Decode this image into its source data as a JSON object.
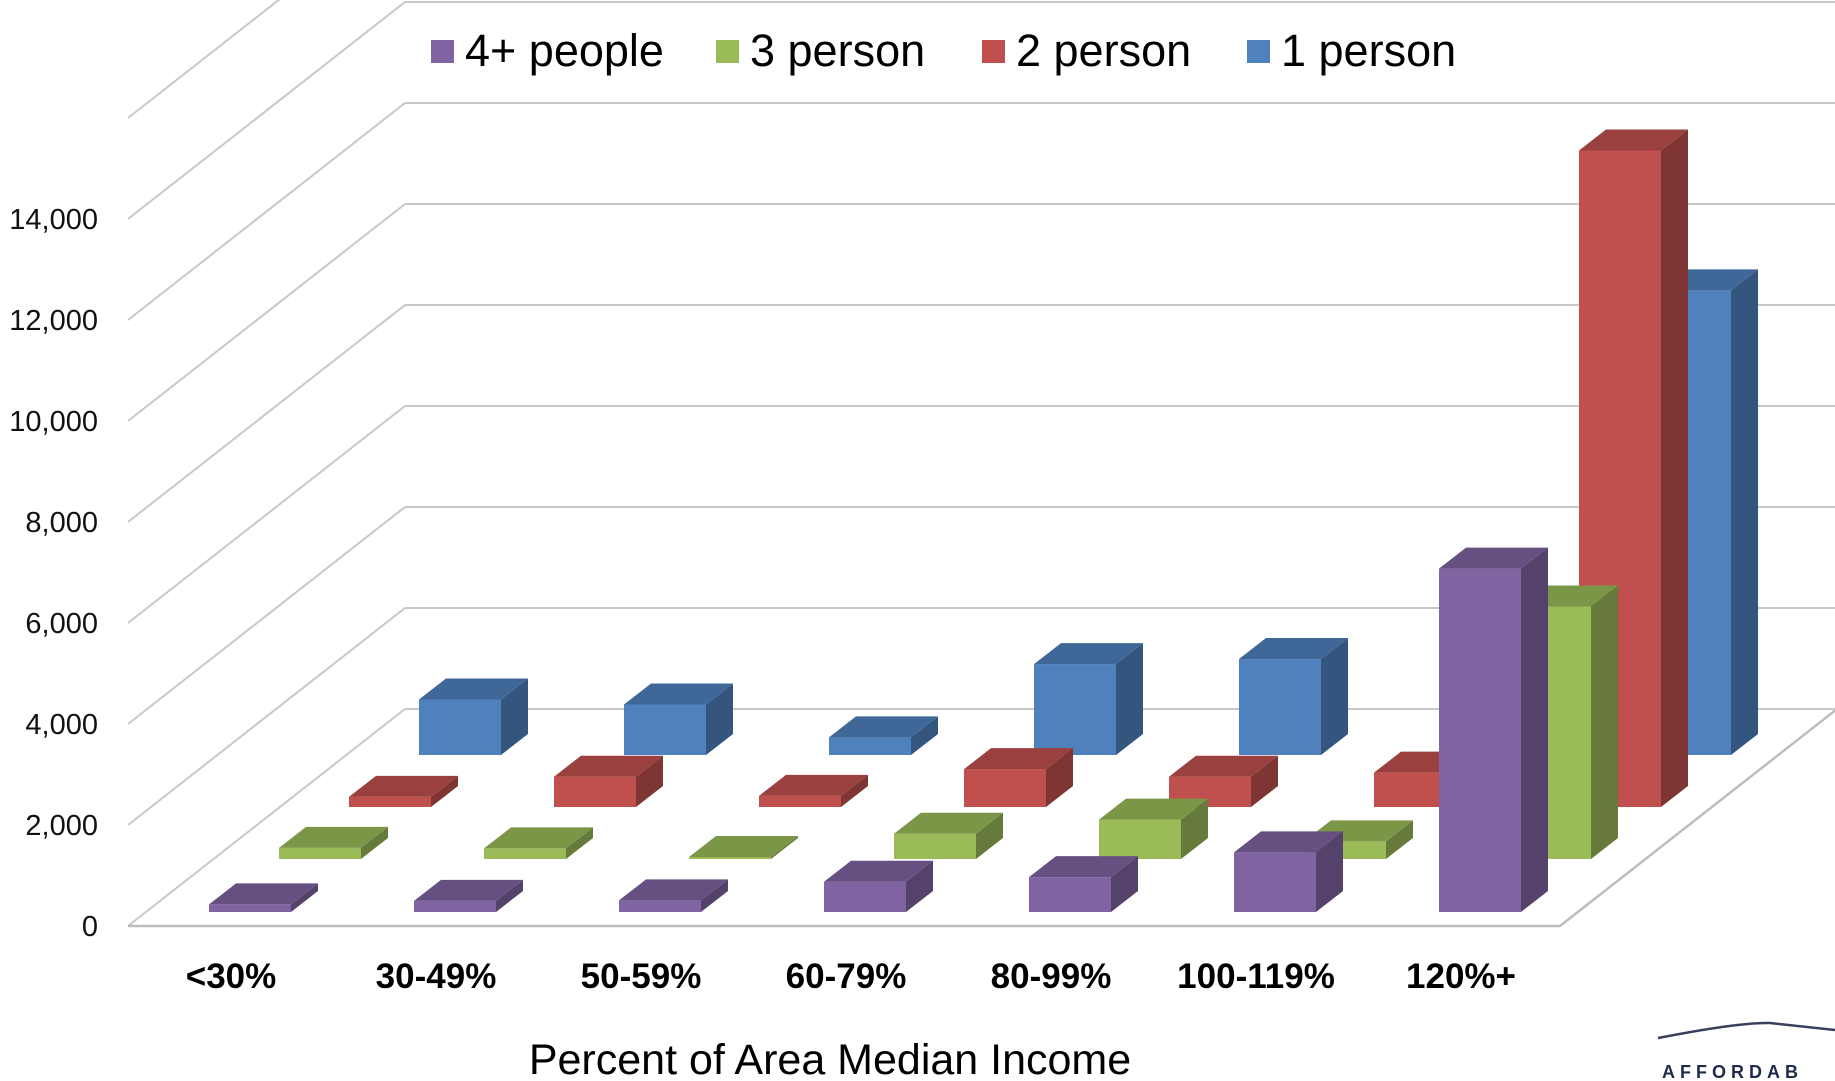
{
  "chart_data": {
    "type": "bar",
    "variant": "3d-depth",
    "title": "",
    "xlabel": "Percent of Area Median Income",
    "ylabel": "",
    "ylim": [
      0,
      16000
    ],
    "y_ticks": [
      "0",
      "2,000",
      "4,000",
      "6,000",
      "8,000",
      "10,000",
      "12,000",
      "14,000"
    ],
    "categories": [
      "<30%",
      "30-49%",
      "50-59%",
      "60-79%",
      "80-99%",
      "100-119%",
      "120%+"
    ],
    "grid": true,
    "legend_position": "top",
    "series": [
      {
        "name": "4+ people",
        "color": "#8064a2",
        "values": [
          150,
          220,
          230,
          600,
          690,
          1180,
          6800
        ]
      },
      {
        "name": "3 person",
        "color": "#9bbb59",
        "values": [
          220,
          210,
          40,
          500,
          780,
          350,
          5000
        ]
      },
      {
        "name": "2 person",
        "color": "#c0504d",
        "values": [
          200,
          600,
          220,
          750,
          600,
          680,
          13000
        ]
      },
      {
        "name": "1 person",
        "color": "#4f81bd",
        "values": [
          1100,
          1000,
          350,
          1800,
          1900,
          0,
          9200
        ]
      }
    ]
  },
  "logo": {
    "text": "AFFORDAB"
  }
}
